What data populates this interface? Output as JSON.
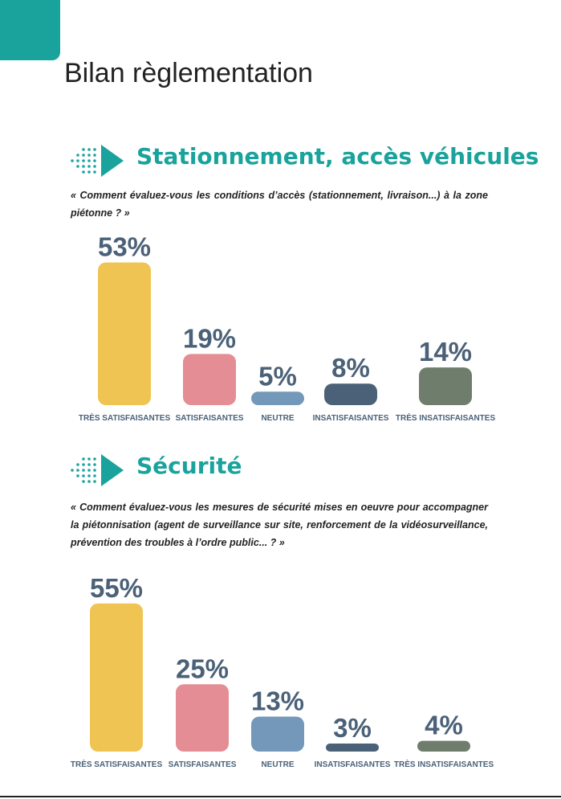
{
  "title": "Bilan règlementation",
  "chart_data": [
    {
      "type": "bar",
      "title": "Stationnement, accès véhicules",
      "subtitle": "« Comment évaluez-vous les conditions d’accès (stationnement, livraison...) à la zone piétonne ? »",
      "categories": [
        "TRÈS SATISFAISANTES",
        "SATISFAISANTES",
        "NEUTRE",
        "INSATISFAISANTES",
        "TRÈS INSATISFAISANTES"
      ],
      "values": [
        53,
        19,
        5,
        8,
        14
      ],
      "value_labels": [
        "53%",
        "19%",
        "5%",
        "8%",
        "14%"
      ],
      "colors": [
        "#f0c453",
        "#e48d94",
        "#7398ba",
        "#4a6178",
        "#6f7e6c"
      ]
    },
    {
      "type": "bar",
      "title": "Sécurité",
      "subtitle": "« Comment évaluez-vous les mesures de sécurité mises en oeuvre pour accompagner la piétonnisation (agent de surveillance sur site, renforcement de la vidéosurveillance, prévention des troubles à l’ordre public... ? »",
      "categories": [
        "TRÈS SATISFAISANTES",
        "SATISFAISANTES",
        "NEUTRE",
        "INSATISFAISANTES",
        "TRÈS INSATISFAISANTES"
      ],
      "values": [
        55,
        25,
        13,
        3,
        4
      ],
      "value_labels": [
        "55%",
        "25%",
        "13%",
        "3%",
        "4%"
      ],
      "colors": [
        "#f0c453",
        "#e48d94",
        "#7398ba",
        "#4a6178",
        "#6f7e6c"
      ]
    }
  ]
}
